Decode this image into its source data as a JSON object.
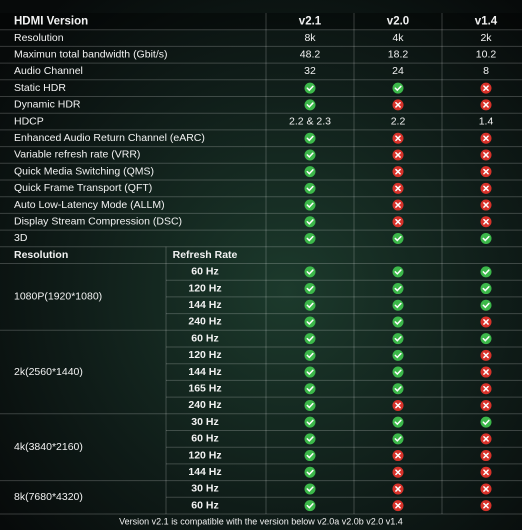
{
  "header": {
    "title": "HDMI Version",
    "versions": [
      "v2.1",
      "v2.0",
      "v1.4"
    ]
  },
  "features": [
    {
      "label": "Resolution",
      "values": [
        "8k",
        "4k",
        "2k"
      ]
    },
    {
      "label": "Maximun total bandwidth (Gbit/s)",
      "values": [
        48.2,
        18.2,
        10.2
      ]
    },
    {
      "label": "Audio Channel",
      "values": [
        32,
        24,
        8
      ]
    },
    {
      "label": "Static HDR",
      "values": [
        true,
        true,
        false
      ]
    },
    {
      "label": "Dynamic HDR",
      "values": [
        true,
        false,
        false
      ]
    },
    {
      "label": "HDCP",
      "values": [
        "2.2 & 2.3",
        2.2,
        1.4
      ]
    },
    {
      "label": "Enhanced Audio Return Channel (eARC)",
      "values": [
        true,
        false,
        false
      ]
    },
    {
      "label": "Variable refresh rate (VRR)",
      "values": [
        true,
        false,
        false
      ]
    },
    {
      "label": "Quick Media Switching (QMS)",
      "values": [
        true,
        false,
        false
      ]
    },
    {
      "label": "Quick Frame Transport (QFT)",
      "values": [
        true,
        false,
        false
      ]
    },
    {
      "label": "Auto Low-Latency Mode (ALLM)",
      "values": [
        true,
        false,
        false
      ]
    },
    {
      "label": "Display Stream Compression (DSC)",
      "values": [
        true,
        false,
        false
      ]
    },
    {
      "label": "3D",
      "values": [
        true,
        true,
        true
      ]
    }
  ],
  "refresh_header": {
    "resolution": "Resolution",
    "refresh_rate": "Refresh Rate"
  },
  "groups": [
    {
      "resolution": "1080P(1920*1080)",
      "rates": [
        {
          "label": "60 Hz",
          "highlight": false,
          "support": [
            true,
            true,
            true
          ]
        },
        {
          "label": "120 Hz",
          "highlight": false,
          "support": [
            true,
            true,
            true
          ]
        },
        {
          "label": "144 Hz",
          "highlight": false,
          "support": [
            true,
            true,
            true
          ]
        },
        {
          "label": "240 Hz",
          "highlight": true,
          "support": [
            true,
            true,
            false
          ]
        }
      ]
    },
    {
      "resolution": "2k(2560*1440)",
      "rates": [
        {
          "label": "60 Hz",
          "highlight": false,
          "support": [
            true,
            true,
            true
          ]
        },
        {
          "label": "120 Hz",
          "highlight": false,
          "support": [
            true,
            true,
            false
          ]
        },
        {
          "label": "144 Hz",
          "highlight": false,
          "support": [
            true,
            true,
            false
          ]
        },
        {
          "label": "165 Hz",
          "highlight": false,
          "support": [
            true,
            true,
            false
          ]
        },
        {
          "label": "240 Hz",
          "highlight": true,
          "support": [
            true,
            false,
            false
          ]
        }
      ]
    },
    {
      "resolution": "4k(3840*2160)",
      "rates": [
        {
          "label": "30 Hz",
          "highlight": false,
          "support": [
            true,
            true,
            true
          ]
        },
        {
          "label": "60 Hz",
          "highlight": false,
          "support": [
            true,
            true,
            false
          ]
        },
        {
          "label": "120 Hz",
          "highlight": false,
          "support": [
            true,
            false,
            false
          ]
        },
        {
          "label": "144 Hz",
          "highlight": true,
          "support": [
            true,
            false,
            false
          ]
        }
      ]
    },
    {
      "resolution": "8k(7680*4320)",
      "rates": [
        {
          "label": "30 Hz",
          "highlight": false,
          "support": [
            true,
            false,
            false
          ]
        },
        {
          "label": "60 Hz",
          "highlight": true,
          "support": [
            true,
            false,
            false
          ]
        }
      ]
    }
  ],
  "footer": "Version v2.1 is compatible with the version below v2.0a v2.0b v2.0 v1.4"
}
